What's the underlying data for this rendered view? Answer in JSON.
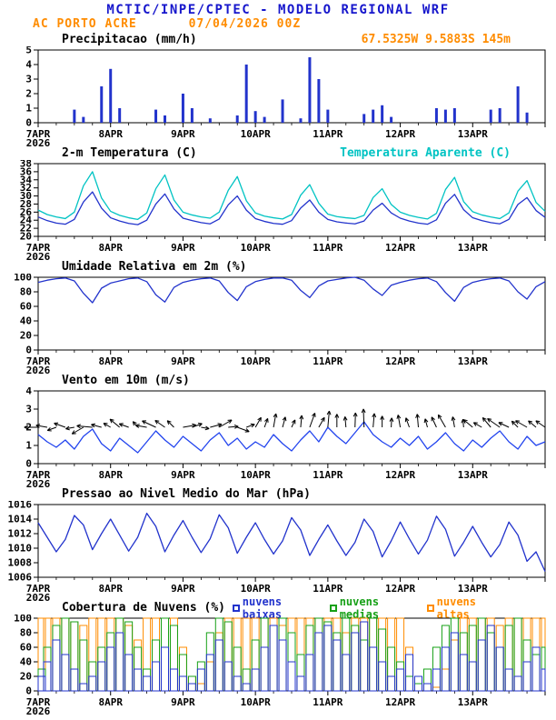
{
  "header": {
    "title": "MCTIC/INPE/CPTEC - MODELO REGIONAL WRF",
    "station": "AC PORTO ACRE",
    "run": "07/04/2026 00Z",
    "coords": "67.5325W 9.5883S 145m"
  },
  "colors": {
    "header_blue": "#1616cc",
    "orange": "#ff8c00",
    "line_blue": "#2233cc",
    "apparent_cyan": "#00c3c3",
    "cloud_low_blue": "#2233cc",
    "cloud_mid_green": "#16a016",
    "cloud_high_orange": "#ff8c00",
    "axis_black": "#000000"
  },
  "x_axis": {
    "hours_total": 168,
    "step_hours": 3,
    "tick_every": 24,
    "minor_every": 6,
    "labels": [
      "7APR",
      "8APR",
      "9APR",
      "10APR",
      "11APR",
      "12APR",
      "13APR"
    ],
    "year": "2026"
  },
  "chart_data": [
    {
      "id": "precipitation",
      "type": "bar",
      "title": "Precipitacao (mm/h)",
      "right_label": "67.5325W 9.5883S 145m",
      "right_label_color": "#ff8c00",
      "ylim": [
        0,
        5
      ],
      "ytick_step": 1,
      "color": "#2233cc",
      "values": [
        0,
        0,
        0,
        0,
        0.9,
        0.4,
        0,
        2.5,
        3.7,
        1.0,
        0,
        0,
        0,
        0.9,
        0.5,
        0,
        2.0,
        1.0,
        0,
        0.3,
        0,
        0,
        0.5,
        4.0,
        0.8,
        0.4,
        0,
        1.6,
        0,
        0.3,
        4.5,
        3.0,
        0.9,
        0,
        0,
        0,
        0.6,
        0.9,
        1.2,
        0.4,
        0,
        0,
        0,
        0,
        1.0,
        0.9,
        1.0,
        0,
        0,
        0,
        0.9,
        1.0,
        0,
        2.5,
        0.7,
        0,
        0
      ]
    },
    {
      "id": "temperature-2m",
      "type": "line",
      "title": "2-m Temperatura (C)",
      "right_label": "Temperatura Aparente (C)",
      "right_label_color": "#00c3c3",
      "ylim": [
        20,
        38
      ],
      "ytick_step": 2,
      "series": [
        {
          "name": "2-m Temperatura (C)",
          "color": "#2233cc",
          "values": [
            24.8,
            23.9,
            23.3,
            23.0,
            24.2,
            28.5,
            31.0,
            27.0,
            24.6,
            23.8,
            23.2,
            22.9,
            24.0,
            28.0,
            30.5,
            26.8,
            24.5,
            23.9,
            23.4,
            23.1,
            24.3,
            27.8,
            30.0,
            26.5,
            24.4,
            23.7,
            23.2,
            23.0,
            23.9,
            27.0,
            29.0,
            26.0,
            24.2,
            23.6,
            23.3,
            23.1,
            23.8,
            26.5,
            28.2,
            25.8,
            24.5,
            23.8,
            23.3,
            23.0,
            24.1,
            28.2,
            30.4,
            26.6,
            24.6,
            23.9,
            23.4,
            23.1,
            24.2,
            27.9,
            29.6,
            26.4,
            24.7
          ]
        },
        {
          "name": "Temperatura Aparente (C)",
          "color": "#00c3c3",
          "values": [
            26.5,
            25.4,
            24.8,
            24.4,
            26.0,
            32.5,
            36.0,
            29.5,
            26.2,
            25.2,
            24.6,
            24.2,
            25.8,
            31.8,
            35.2,
            29.0,
            26.0,
            25.3,
            24.8,
            24.5,
            26.0,
            31.4,
            34.8,
            28.8,
            25.8,
            25.0,
            24.6,
            24.3,
            25.4,
            30.2,
            32.8,
            28.2,
            25.5,
            24.9,
            24.6,
            24.4,
            25.2,
            29.6,
            31.8,
            27.9,
            26.0,
            25.2,
            24.7,
            24.3,
            25.7,
            31.6,
            34.6,
            28.6,
            26.1,
            25.3,
            24.8,
            24.4,
            25.8,
            31.2,
            33.8,
            28.4,
            26.2
          ]
        }
      ]
    },
    {
      "id": "relative-humidity-2m",
      "type": "line",
      "title": "Umidade Relativa em 2m (%)",
      "ylim": [
        0,
        100
      ],
      "ytick_step": 20,
      "series": [
        {
          "name": "Umidade Relativa em 2m (%)",
          "color": "#2233cc",
          "values": [
            93,
            96,
            98,
            99,
            95,
            78,
            65,
            85,
            92,
            95,
            98,
            99,
            94,
            76,
            66,
            86,
            93,
            96,
            98,
            99,
            95,
            79,
            68,
            87,
            94,
            97,
            99,
            99,
            96,
            82,
            72,
            88,
            95,
            97,
            99,
            100,
            96,
            84,
            75,
            89,
            93,
            96,
            98,
            99,
            94,
            79,
            67,
            86,
            93,
            96,
            98,
            99,
            95,
            80,
            70,
            87,
            94
          ]
        }
      ]
    },
    {
      "id": "wind-10m",
      "type": "wind",
      "title": "Vento em 10m (m/s)",
      "ylim": [
        0,
        4
      ],
      "ytick_step": 1,
      "arrow_base": 2.0,
      "arrow_color": "#000000",
      "series": [
        {
          "name": "Vento em 10m (m/s)",
          "color": "#2244ee",
          "values": [
            1.6,
            1.2,
            0.9,
            1.3,
            0.8,
            1.5,
            1.9,
            1.1,
            0.7,
            1.4,
            1.0,
            0.6,
            1.2,
            1.8,
            1.3,
            0.9,
            1.5,
            1.1,
            0.7,
            1.3,
            1.7,
            1.0,
            1.4,
            0.8,
            1.2,
            0.9,
            1.6,
            1.1,
            0.7,
            1.3,
            1.8,
            1.2,
            2.0,
            1.5,
            1.1,
            1.7,
            2.3,
            1.6,
            1.2,
            0.9,
            1.4,
            1.0,
            1.5,
            0.8,
            1.2,
            1.7,
            1.1,
            0.7,
            1.3,
            0.9,
            1.4,
            1.8,
            1.2,
            0.8,
            1.5,
            1.0,
            1.2
          ]
        }
      ],
      "directions_deg": [
        180,
        170,
        200,
        160,
        190,
        210,
        175,
        165,
        150,
        140,
        160,
        130,
        170,
        155,
        145,
        135,
        10,
        20,
        350,
        15,
        30,
        5,
        340,
        20,
        60,
        70,
        80,
        75,
        65,
        85,
        70,
        60,
        85,
        90,
        95,
        88,
        92,
        85,
        90,
        87,
        100,
        110,
        95,
        105,
        115,
        120,
        100,
        95,
        140,
        150,
        130,
        145,
        155,
        135,
        150,
        140,
        145
      ]
    },
    {
      "id": "mslp",
      "type": "line",
      "title": "Pressao ao Nivel Medio do Mar (hPa)",
      "ylim": [
        1006,
        1016
      ],
      "ytick_step": 2,
      "series": [
        {
          "name": "Pressao ao Nivel Medio do Mar (hPa)",
          "color": "#2233cc",
          "values": [
            1013.5,
            1011.5,
            1009.5,
            1011.2,
            1014.5,
            1013.2,
            1009.8,
            1012.0,
            1014.0,
            1011.8,
            1009.6,
            1011.5,
            1014.8,
            1013.0,
            1009.5,
            1011.8,
            1013.8,
            1011.5,
            1009.4,
            1011.3,
            1014.6,
            1012.8,
            1009.3,
            1011.5,
            1013.5,
            1011.2,
            1009.2,
            1011.0,
            1014.2,
            1012.5,
            1009.0,
            1011.2,
            1013.2,
            1011.0,
            1009.0,
            1010.8,
            1014.0,
            1012.3,
            1008.8,
            1011.0,
            1013.6,
            1011.3,
            1009.2,
            1011.1,
            1014.4,
            1012.6,
            1008.9,
            1010.8,
            1013.0,
            1010.8,
            1008.8,
            1010.5,
            1013.6,
            1011.8,
            1008.2,
            1009.5,
            1006.8
          ]
        }
      ]
    },
    {
      "id": "cloud-cover",
      "type": "cloudbar",
      "title": "Cobertura de Nuvens (%)",
      "ylim": [
        0,
        100
      ],
      "ytick_step": 20,
      "legend": [
        {
          "label": "nuvens baixas",
          "color": "#2233cc"
        },
        {
          "label": "nuvens medias",
          "color": "#16a016"
        },
        {
          "label": "nuvens altas",
          "color": "#ff8c00"
        }
      ],
      "series": [
        {
          "name": "nuvens altas",
          "color": "#ff8c00",
          "values": [
            100,
            100,
            100,
            100,
            95,
            90,
            100,
            100,
            100,
            100,
            90,
            70,
            100,
            100,
            100,
            100,
            60,
            20,
            10,
            40,
            80,
            100,
            100,
            100,
            100,
            100,
            100,
            90,
            100,
            100,
            100,
            100,
            100,
            100,
            80,
            100,
            100,
            100,
            100,
            100,
            100,
            60,
            20,
            10,
            5,
            30,
            70,
            100,
            100,
            100,
            100,
            90,
            100,
            100,
            100,
            100,
            100
          ]
        },
        {
          "name": "nuvens medias",
          "color": "#16a016",
          "values": [
            30,
            60,
            90,
            100,
            95,
            70,
            40,
            60,
            80,
            100,
            95,
            60,
            30,
            70,
            100,
            90,
            50,
            20,
            40,
            80,
            100,
            95,
            60,
            30,
            70,
            100,
            90,
            100,
            80,
            50,
            90,
            100,
            95,
            80,
            100,
            90,
            70,
            100,
            85,
            60,
            40,
            20,
            10,
            30,
            60,
            90,
            100,
            80,
            90,
            100,
            80,
            60,
            90,
            100,
            70,
            50,
            60
          ]
        },
        {
          "name": "nuvens baixas",
          "color": "#2233cc",
          "values": [
            20,
            40,
            70,
            50,
            30,
            10,
            20,
            40,
            60,
            80,
            50,
            30,
            20,
            40,
            60,
            30,
            20,
            10,
            30,
            50,
            70,
            40,
            20,
            10,
            30,
            60,
            90,
            70,
            40,
            20,
            50,
            80,
            90,
            70,
            50,
            80,
            95,
            60,
            40,
            20,
            30,
            50,
            20,
            10,
            30,
            60,
            80,
            50,
            40,
            70,
            90,
            60,
            30,
            20,
            40,
            60,
            30
          ]
        }
      ]
    }
  ]
}
